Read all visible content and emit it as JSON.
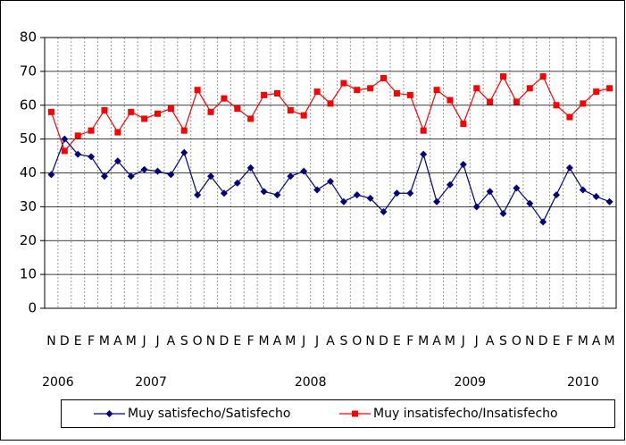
{
  "chart_data": {
    "type": "line",
    "categories": [
      "N",
      "D",
      "E",
      "F",
      "M",
      "A",
      "M",
      "J",
      "J",
      "A",
      "S",
      "O",
      "N",
      "D",
      "E",
      "F",
      "M",
      "A",
      "M",
      "J",
      "J",
      "A",
      "S",
      "O",
      "N",
      "D",
      "E",
      "F",
      "M",
      "A",
      "M",
      "J",
      "J",
      "A",
      "S",
      "O",
      "N",
      "D",
      "E",
      "F",
      "M",
      "A",
      "M"
    ],
    "year_labels": [
      "2006",
      "2007",
      "2008",
      "2009",
      "2010"
    ],
    "series": [
      {
        "name": "Muy satisfecho/Satisfecho",
        "color": "#000080",
        "marker": "diamond",
        "values": [
          39.5,
          50,
          45.5,
          44.8,
          39,
          43.5,
          39,
          41,
          40.5,
          39.5,
          46,
          33.5,
          39,
          34,
          37,
          41.5,
          34.5,
          33.5,
          39,
          40.5,
          35,
          37.5,
          31.5,
          33.5,
          32.5,
          28.5,
          34,
          34,
          45.5,
          31.5,
          36.5,
          42.5,
          30,
          34.5,
          28,
          35.5,
          31,
          25.5,
          33.5,
          41.5,
          35,
          33,
          31.5
        ]
      },
      {
        "name": "Muy insatisfecho/Insatisfecho",
        "color": "#ff0000",
        "marker": "square",
        "values": [
          58,
          46.5,
          51,
          52.5,
          58.5,
          52,
          58,
          56,
          57.5,
          59,
          52.5,
          64.5,
          58,
          62,
          59,
          56,
          63,
          63.5,
          58.5,
          57,
          64,
          60.5,
          66.5,
          64.5,
          65,
          68,
          63.5,
          63,
          52.5,
          64.5,
          61.5,
          54.5,
          65,
          61,
          68.5,
          61,
          65,
          68.5,
          60,
          56.5,
          60.5,
          64,
          65
        ]
      }
    ],
    "ylim": [
      0,
      80
    ],
    "yticks": [
      0,
      10,
      20,
      30,
      40,
      50,
      60,
      70,
      80
    ],
    "grid": true,
    "legend": "bottom"
  }
}
